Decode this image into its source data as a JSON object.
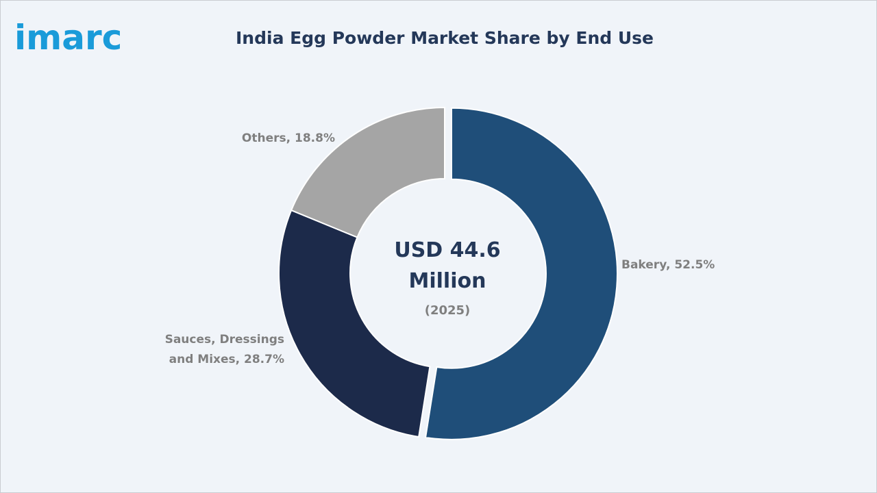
{
  "brand": {
    "logo_text": "imarc",
    "logo_color": "#1a9bd9"
  },
  "chart_data": {
    "type": "pie",
    "title": "India Egg Powder Market Share by End Use",
    "center_text": {
      "line1": "USD 44.6",
      "line2": "Million",
      "line3": "(2025)"
    },
    "slices": [
      {
        "label": "Bakery, 52.5%",
        "category": "Bakery",
        "value": 52.5,
        "color": "#1f4e79",
        "exploded": true
      },
      {
        "label": "Sauces, Dressings and Mixes, 28.7%",
        "label_lines": [
          "Sauces, Dressings",
          "and Mixes, 28.7%"
        ],
        "category": "Sauces, Dressings and Mixes",
        "value": 28.7,
        "color": "#1c2a4a",
        "exploded": false
      },
      {
        "label": "Others, 18.8%",
        "category": "Others",
        "value": 18.8,
        "color": "#a5a5a5",
        "exploded": false
      }
    ],
    "legend": "none",
    "start_angle": "12 o'clock",
    "direction": "clockwise"
  }
}
